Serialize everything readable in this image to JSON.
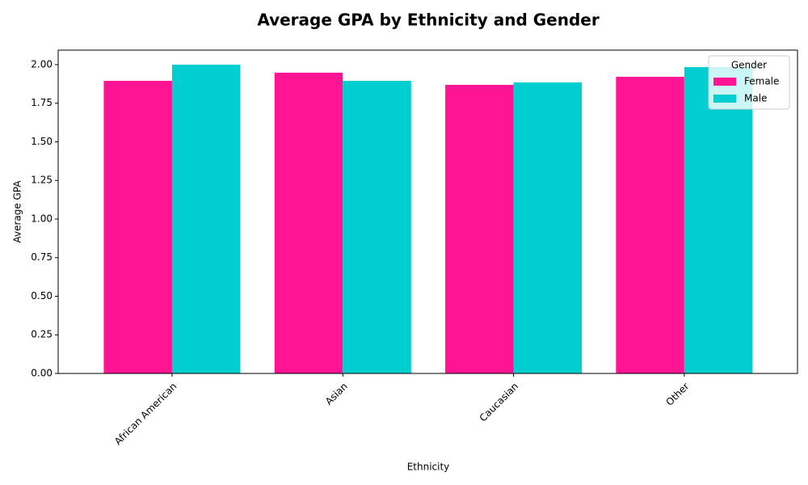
{
  "chart_data": {
    "type": "bar",
    "title": "Average GPA by Ethnicity and Gender",
    "x_label": "Ethnicity",
    "y_label": "Average GPA",
    "categories": [
      "African American",
      "Asian",
      "Caucasian",
      "Other"
    ],
    "series": [
      {
        "name": "Female",
        "color": "#ff1493",
        "values": [
          1.895,
          1.948,
          1.869,
          1.921
        ]
      },
      {
        "name": "Male",
        "color": "#00ced1",
        "values": [
          2.0,
          1.895,
          1.885,
          1.984
        ]
      }
    ],
    "ylim": [
      0,
      2.094
    ],
    "yticks": [
      {
        "value": 0,
        "label": "0.00"
      },
      {
        "value": 0.25,
        "label": "0.25"
      },
      {
        "value": 0.5,
        "label": "0.50"
      },
      {
        "value": 0.75,
        "label": "0.75"
      },
      {
        "value": 1,
        "label": "1.00"
      },
      {
        "value": 1.25,
        "label": "1.25"
      },
      {
        "value": 1.5,
        "label": "1.50"
      },
      {
        "value": 1.75,
        "label": "1.75"
      },
      {
        "value": 2,
        "label": "2.00"
      }
    ],
    "legend_title": "Gender",
    "legend_position": "upper-right",
    "grid": false
  }
}
